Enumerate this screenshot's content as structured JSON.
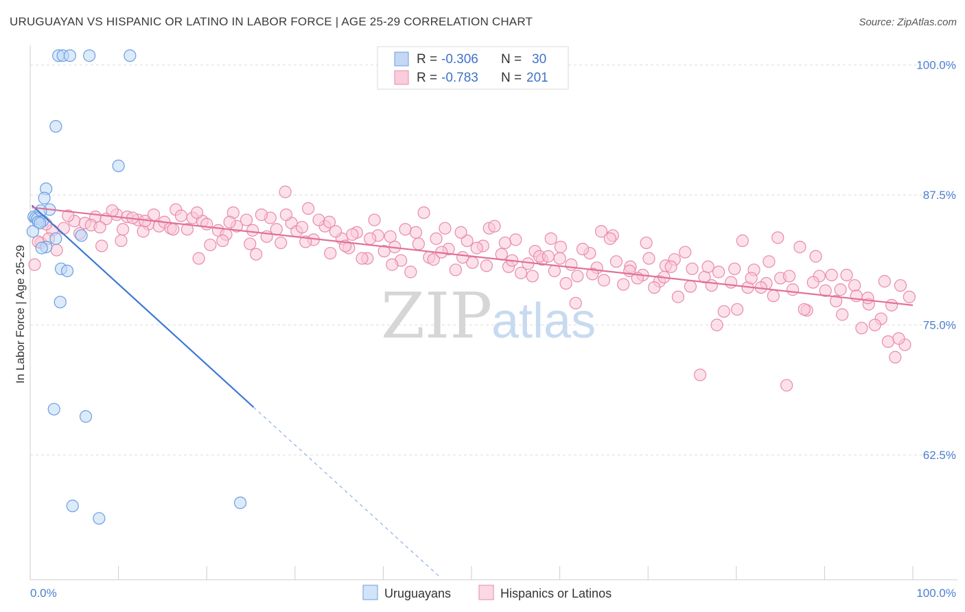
{
  "title": "URUGUAYAN VS HISPANIC OR LATINO IN LABOR FORCE | AGE 25-29 CORRELATION CHART",
  "source": "Source: ZipAtlas.com",
  "watermark": {
    "zip": "ZIP",
    "atlas": "atlas"
  },
  "legend_top": [
    {
      "r_label": "R = ",
      "r_value": "-0.306",
      "n_label": "N = ",
      "n_value": "30",
      "color": "#a8c8f0",
      "stroke": "#6a9ee0"
    },
    {
      "r_label": "R = ",
      "r_value": "-0.783",
      "n_label": "N = ",
      "n_value": "201",
      "color": "#f7b8cc",
      "stroke": "#e88aa8"
    }
  ],
  "legend_bottom": [
    {
      "label": "Uruguayans",
      "color": "#c0d8f5",
      "stroke": "#6a9ee0"
    },
    {
      "label": "Hispanics or Latinos",
      "color": "#f9c8d8",
      "stroke": "#e88aa8"
    }
  ],
  "chart_data": {
    "type": "scatter",
    "xlabel": "",
    "ylabel": "In Labor Force | Age 25-29",
    "xlim": [
      0,
      100
    ],
    "ylim": [
      50.5,
      101.5
    ],
    "x_tick_labels": [
      "0.0%",
      "100.0%"
    ],
    "y_ticks": [
      62.5,
      75.0,
      87.5,
      100.0
    ],
    "y_tick_labels": [
      "62.5%",
      "75.0%",
      "87.5%",
      "100.0%"
    ],
    "grid": true,
    "series": [
      {
        "name": "Uruguayans",
        "color": "#6a9ee0",
        "fill": "#c0d8f5",
        "trend": {
          "x": [
            0.2,
            25.3
          ],
          "y": [
            86.5,
            67.1
          ],
          "dash_to": [
            46.5,
            50.7
          ]
        },
        "points": [
          [
            3.2,
            100.9
          ],
          [
            3.7,
            100.9
          ],
          [
            4.5,
            100.9
          ],
          [
            6.7,
            100.9
          ],
          [
            11.3,
            100.9
          ],
          [
            2.9,
            94.1
          ],
          [
            10.0,
            90.3
          ],
          [
            1.8,
            88.1
          ],
          [
            1.6,
            87.2
          ],
          [
            2.2,
            86.1
          ],
          [
            0.4,
            85.4
          ],
          [
            0.6,
            85.3
          ],
          [
            0.8,
            85.2
          ],
          [
            1.2,
            86.0
          ],
          [
            1.4,
            85.0
          ],
          [
            0.9,
            84.9
          ],
          [
            1.1,
            84.8
          ],
          [
            0.3,
            84.0
          ],
          [
            2.9,
            83.3
          ],
          [
            5.8,
            83.6
          ],
          [
            1.8,
            82.5
          ],
          [
            1.3,
            82.4
          ],
          [
            3.5,
            80.4
          ],
          [
            4.2,
            80.2
          ],
          [
            3.4,
            77.2
          ],
          [
            2.7,
            66.9
          ],
          [
            6.3,
            66.2
          ],
          [
            4.8,
            57.6
          ],
          [
            7.8,
            56.4
          ],
          [
            23.8,
            57.9
          ]
        ]
      },
      {
        "name": "Hispanics or Latinos",
        "color": "#e88aa8",
        "fill": "#f9c8d8",
        "trend": {
          "x": [
            0.2,
            100
          ],
          "y": [
            86.3,
            76.9
          ]
        },
        "points": [
          [
            0.5,
            80.8
          ],
          [
            1.2,
            82.9
          ],
          [
            2.5,
            84.1
          ],
          [
            3.8,
            84.3
          ],
          [
            5.0,
            85.0
          ],
          [
            6.2,
            84.8
          ],
          [
            7.4,
            85.4
          ],
          [
            8.6,
            85.2
          ],
          [
            9.8,
            85.6
          ],
          [
            11.0,
            85.4
          ],
          [
            12.2,
            85.1
          ],
          [
            13.4,
            84.7
          ],
          [
            14.6,
            84.5
          ],
          [
            15.2,
            84.9
          ],
          [
            16.5,
            86.1
          ],
          [
            17.8,
            84.2
          ],
          [
            18.4,
            85.3
          ],
          [
            19.5,
            85.0
          ],
          [
            20.4,
            82.7
          ],
          [
            21.3,
            84.1
          ],
          [
            22.2,
            83.7
          ],
          [
            23.4,
            84.5
          ],
          [
            24.5,
            85.1
          ],
          [
            25.6,
            81.8
          ],
          [
            26.8,
            83.5
          ],
          [
            27.2,
            85.3
          ],
          [
            28.4,
            82.9
          ],
          [
            29.6,
            84.8
          ],
          [
            30.2,
            84.0
          ],
          [
            31.5,
            86.2
          ],
          [
            32.1,
            83.2
          ],
          [
            33.4,
            84.5
          ],
          [
            34.0,
            81.9
          ],
          [
            35.3,
            83.3
          ],
          [
            36.1,
            82.4
          ],
          [
            37.0,
            83.9
          ],
          [
            38.2,
            81.4
          ],
          [
            39.4,
            83.6
          ],
          [
            40.1,
            82.1
          ],
          [
            41.3,
            82.5
          ],
          [
            42.5,
            84.2
          ],
          [
            43.1,
            80.1
          ],
          [
            44.0,
            82.8
          ],
          [
            45.2,
            81.5
          ],
          [
            46.0,
            83.3
          ],
          [
            47.4,
            82.3
          ],
          [
            48.2,
            80.3
          ],
          [
            49.5,
            83.1
          ],
          [
            50.1,
            81.0
          ],
          [
            51.3,
            82.6
          ],
          [
            52.0,
            84.3
          ],
          [
            53.4,
            81.8
          ],
          [
            54.2,
            80.6
          ],
          [
            55.0,
            83.2
          ],
          [
            56.4,
            80.9
          ],
          [
            57.2,
            82.1
          ],
          [
            58.0,
            81.3
          ],
          [
            59.4,
            80.2
          ],
          [
            60.1,
            82.5
          ],
          [
            61.3,
            80.8
          ],
          [
            62.0,
            79.7
          ],
          [
            63.4,
            81.9
          ],
          [
            64.2,
            80.5
          ],
          [
            65.0,
            79.3
          ],
          [
            66.4,
            81.1
          ],
          [
            67.2,
            78.9
          ],
          [
            68.0,
            80.6
          ],
          [
            69.4,
            79.8
          ],
          [
            70.1,
            81.4
          ],
          [
            71.3,
            79.2
          ],
          [
            72.0,
            80.7
          ],
          [
            73.4,
            77.7
          ],
          [
            74.2,
            82.0
          ],
          [
            75.0,
            80.4
          ],
          [
            76.4,
            79.6
          ],
          [
            77.2,
            78.8
          ],
          [
            78.0,
            80.1
          ],
          [
            79.4,
            79.1
          ],
          [
            80.1,
            76.5
          ],
          [
            81.3,
            78.6
          ],
          [
            82.0,
            80.3
          ],
          [
            83.4,
            79.0
          ],
          [
            84.2,
            77.8
          ],
          [
            85.0,
            79.5
          ],
          [
            86.4,
            78.4
          ],
          [
            87.2,
            82.5
          ],
          [
            88.0,
            76.4
          ],
          [
            89.4,
            79.7
          ],
          [
            90.1,
            78.3
          ],
          [
            91.3,
            77.3
          ],
          [
            92.0,
            76.0
          ],
          [
            93.4,
            78.8
          ],
          [
            94.2,
            74.7
          ],
          [
            95.0,
            77.0
          ],
          [
            96.4,
            75.6
          ],
          [
            97.2,
            73.4
          ],
          [
            98.0,
            71.9
          ],
          [
            99.1,
            73.1
          ],
          [
            99.6,
            77.7
          ],
          [
            1.8,
            84.7
          ],
          [
            3.0,
            82.2
          ],
          [
            4.3,
            85.5
          ],
          [
            5.6,
            83.8
          ],
          [
            6.9,
            84.6
          ],
          [
            8.1,
            82.6
          ],
          [
            9.3,
            86.0
          ],
          [
            10.5,
            84.2
          ],
          [
            11.6,
            85.3
          ],
          [
            12.8,
            84.0
          ],
          [
            14.0,
            85.6
          ],
          [
            15.9,
            84.3
          ],
          [
            17.1,
            85.5
          ],
          [
            18.9,
            85.8
          ],
          [
            20.0,
            84.7
          ],
          [
            21.8,
            83.1
          ],
          [
            23.0,
            85.8
          ],
          [
            24.9,
            82.8
          ],
          [
            26.2,
            85.6
          ],
          [
            27.9,
            84.2
          ],
          [
            29.0,
            85.6
          ],
          [
            30.8,
            84.4
          ],
          [
            32.7,
            85.1
          ],
          [
            34.6,
            84.0
          ],
          [
            36.5,
            83.7
          ],
          [
            37.6,
            81.4
          ],
          [
            39.0,
            85.1
          ],
          [
            40.8,
            83.5
          ],
          [
            42.0,
            81.2
          ],
          [
            43.7,
            83.9
          ],
          [
            45.7,
            81.3
          ],
          [
            47.0,
            84.3
          ],
          [
            48.8,
            83.9
          ],
          [
            50.6,
            82.4
          ],
          [
            52.6,
            84.5
          ],
          [
            53.8,
            82.9
          ],
          [
            55.6,
            80.0
          ],
          [
            57.7,
            81.6
          ],
          [
            59.0,
            83.3
          ],
          [
            60.7,
            79.0
          ],
          [
            62.6,
            82.3
          ],
          [
            64.7,
            84.0
          ],
          [
            66.0,
            83.6
          ],
          [
            67.9,
            80.2
          ],
          [
            69.8,
            82.9
          ],
          [
            71.8,
            79.6
          ],
          [
            73.0,
            81.3
          ],
          [
            74.8,
            78.7
          ],
          [
            76.8,
            80.6
          ],
          [
            78.6,
            76.3
          ],
          [
            79.8,
            80.4
          ],
          [
            81.7,
            79.5
          ],
          [
            83.7,
            81.1
          ],
          [
            84.7,
            83.4
          ],
          [
            86.0,
            79.7
          ],
          [
            87.7,
            76.5
          ],
          [
            89.0,
            81.6
          ],
          [
            90.8,
            79.8
          ],
          [
            92.5,
            79.8
          ],
          [
            93.6,
            77.8
          ],
          [
            95.7,
            75.0
          ],
          [
            96.8,
            79.2
          ],
          [
            98.4,
            73.7
          ],
          [
            2.1,
            83.3
          ],
          [
            7.9,
            84.4
          ],
          [
            13.0,
            85.0
          ],
          [
            16.2,
            84.2
          ],
          [
            19.1,
            81.4
          ],
          [
            22.6,
            84.9
          ],
          [
            25.2,
            84.1
          ],
          [
            28.9,
            87.8
          ],
          [
            31.2,
            83.0
          ],
          [
            33.9,
            84.9
          ],
          [
            35.7,
            82.6
          ],
          [
            38.5,
            83.3
          ],
          [
            41.0,
            80.8
          ],
          [
            44.6,
            85.8
          ],
          [
            46.6,
            82.0
          ],
          [
            49.0,
            81.5
          ],
          [
            51.7,
            80.7
          ],
          [
            54.6,
            81.2
          ],
          [
            56.9,
            79.7
          ],
          [
            58.7,
            81.6
          ],
          [
            61.8,
            77.1
          ],
          [
            63.7,
            79.9
          ],
          [
            65.7,
            83.3
          ],
          [
            68.8,
            79.5
          ],
          [
            70.7,
            78.6
          ],
          [
            72.6,
            80.6
          ],
          [
            75.9,
            70.2
          ],
          [
            77.8,
            75.0
          ],
          [
            80.7,
            83.1
          ],
          [
            82.8,
            78.6
          ],
          [
            85.7,
            69.2
          ],
          [
            88.7,
            79.1
          ],
          [
            91.8,
            78.4
          ],
          [
            94.9,
            77.6
          ],
          [
            97.6,
            76.9
          ],
          [
            98.6,
            78.8
          ],
          [
            0.9,
            83.0
          ],
          [
            10.3,
            83.1
          ],
          [
            60.0,
            81.4
          ]
        ]
      }
    ]
  }
}
